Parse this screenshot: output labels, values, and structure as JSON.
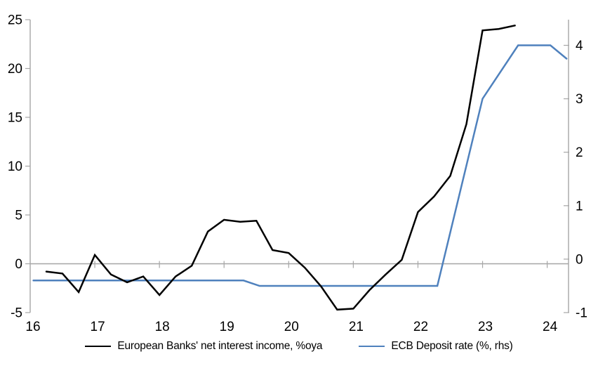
{
  "chart_data": {
    "type": "line",
    "title": "",
    "x_axis": {
      "range": [
        16,
        24.33
      ],
      "ticks": [
        16,
        17,
        18,
        19,
        20,
        21,
        22,
        23,
        24
      ],
      "tick_labels": [
        "16",
        "17",
        "18",
        "19",
        "20",
        "21",
        "22",
        "23",
        "24"
      ]
    },
    "left_axis": {
      "range": [
        -5,
        25
      ],
      "ticks": [
        -5,
        0,
        5,
        10,
        15,
        20,
        25
      ],
      "tick_labels": [
        "-5",
        "0",
        "5",
        "10",
        "15",
        "20",
        "25"
      ]
    },
    "right_axis": {
      "range": [
        -1,
        4.48
      ],
      "ticks": [
        -1,
        0,
        1,
        2,
        3,
        4
      ],
      "tick_labels": [
        "-1",
        "0",
        "1",
        "2",
        "3",
        "4"
      ]
    },
    "grid": "zero-line-only",
    "legend_position": "bottom",
    "colors": {
      "axis": "#a6a6a6",
      "zero_line": "#a6a6a6",
      "text": "#000000",
      "nii": "#000000",
      "ecb": "#4f81bd"
    },
    "series": [
      {
        "name": "European Banks' net interest income, %oya",
        "axis": "left",
        "color": "#000000",
        "points": [
          [
            16.25,
            -0.8
          ],
          [
            16.5,
            -1.0
          ],
          [
            16.75,
            -2.9
          ],
          [
            17.0,
            0.9
          ],
          [
            17.25,
            -1.1
          ],
          [
            17.5,
            -1.9
          ],
          [
            17.75,
            -1.3
          ],
          [
            18.0,
            -3.2
          ],
          [
            18.25,
            -1.3
          ],
          [
            18.5,
            -0.2
          ],
          [
            18.75,
            3.3
          ],
          [
            19.0,
            4.5
          ],
          [
            19.25,
            4.3
          ],
          [
            19.5,
            4.4
          ],
          [
            19.75,
            1.4
          ],
          [
            20.0,
            1.1
          ],
          [
            20.25,
            -0.4
          ],
          [
            20.5,
            -2.3
          ],
          [
            20.75,
            -4.7
          ],
          [
            21.0,
            -4.6
          ],
          [
            21.25,
            -2.7
          ],
          [
            21.5,
            -1.1
          ],
          [
            21.75,
            0.4
          ],
          [
            22.0,
            5.3
          ],
          [
            22.25,
            6.9
          ],
          [
            22.5,
            9.0
          ],
          [
            22.75,
            14.3
          ],
          [
            23.0,
            23.9
          ],
          [
            23.25,
            24.05
          ],
          [
            23.5,
            24.4
          ]
        ]
      },
      {
        "name": "ECB Deposit rate (%, rhs)",
        "axis": "right",
        "color": "#4f81bd",
        "points": [
          [
            16.05,
            -0.4
          ],
          [
            19.3,
            -0.4
          ],
          [
            19.55,
            -0.5
          ],
          [
            22.3,
            -0.5
          ],
          [
            23.0,
            3.0
          ],
          [
            23.55,
            4.0
          ],
          [
            24.05,
            4.0
          ],
          [
            24.3,
            3.75
          ]
        ]
      }
    ]
  }
}
